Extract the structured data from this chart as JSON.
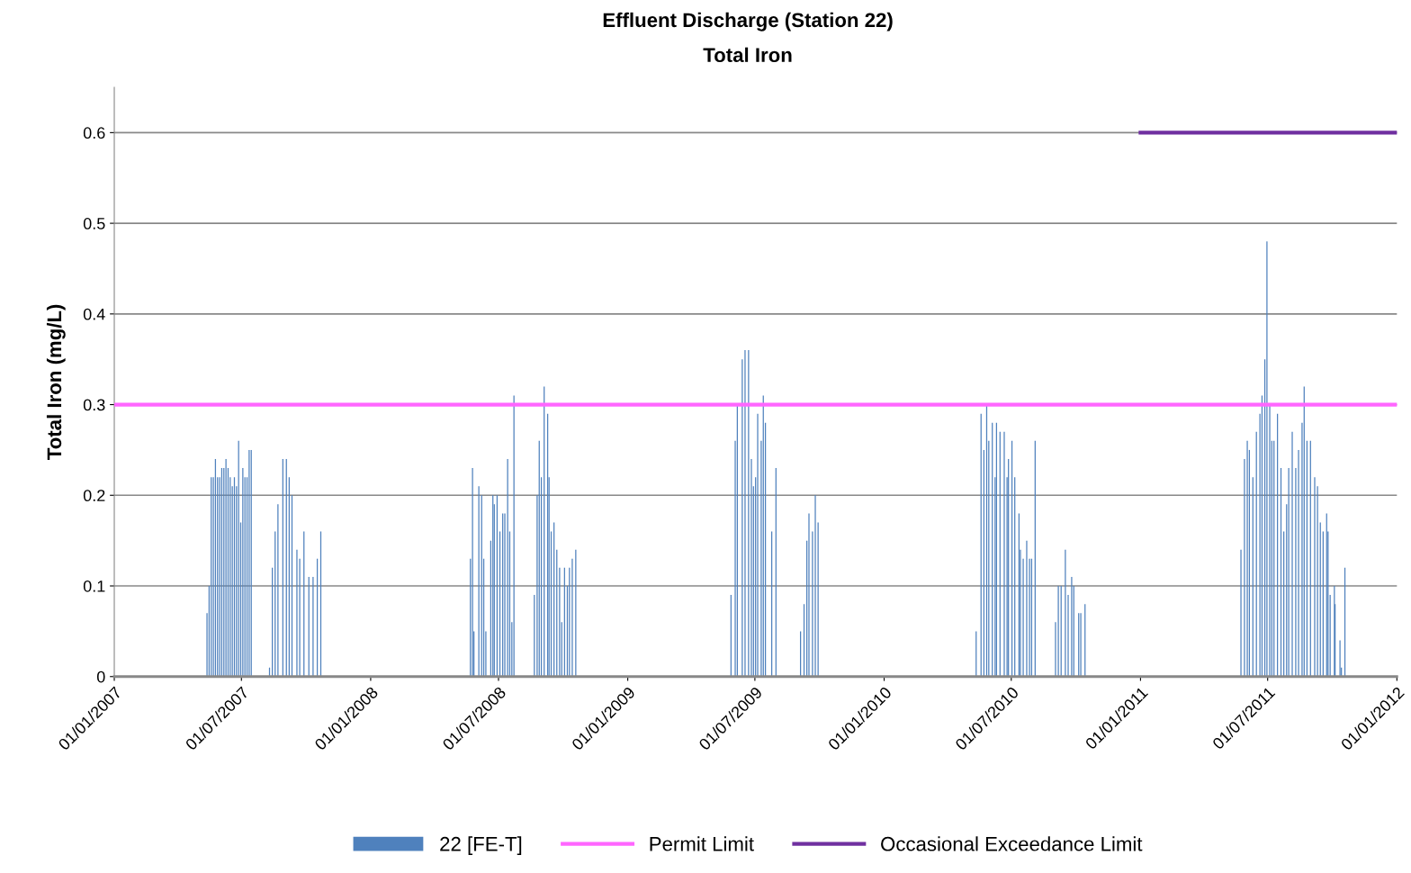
{
  "chart_data": {
    "type": "bar",
    "title": "Effluent Discharge (Station 22)",
    "subtitle": "Total Iron",
    "ylabel": "Total Iron (mg/L)",
    "xlim": [
      "2007-01-01",
      "2012-01-01"
    ],
    "xticks": [
      {
        "value": "2007-01-01",
        "label": "01/01/2007"
      },
      {
        "value": "2007-07-01",
        "label": "01/07/2007"
      },
      {
        "value": "2008-01-01",
        "label": "01/01/2008"
      },
      {
        "value": "2008-07-01",
        "label": "01/07/2008"
      },
      {
        "value": "2009-01-01",
        "label": "01/01/2009"
      },
      {
        "value": "2009-07-01",
        "label": "01/07/2009"
      },
      {
        "value": "2010-01-01",
        "label": "01/01/2010"
      },
      {
        "value": "2010-07-01",
        "label": "01/07/2010"
      },
      {
        "value": "2011-01-01",
        "label": "01/01/2011"
      },
      {
        "value": "2011-07-01",
        "label": "01/07/2011"
      },
      {
        "value": "2012-01-01",
        "label": "01/01/2012"
      }
    ],
    "ylim": [
      0,
      0.65
    ],
    "yticks": [
      0,
      0.1,
      0.2,
      0.3,
      0.4,
      0.5,
      0.6
    ],
    "grid": "y",
    "legend": "bottom",
    "series": [
      {
        "name": "22 [FE-T]",
        "color": "#4f81bd",
        "x": [
          "2007-05-13",
          "2007-05-16",
          "2007-05-19",
          "2007-05-22",
          "2007-05-25",
          "2007-05-28",
          "2007-05-31",
          "2007-06-03",
          "2007-06-06",
          "2007-06-09",
          "2007-06-12",
          "2007-06-15",
          "2007-06-18",
          "2007-06-21",
          "2007-06-24",
          "2007-06-27",
          "2007-06-30",
          "2007-07-03",
          "2007-07-06",
          "2007-07-09",
          "2007-07-12",
          "2007-07-15",
          "2007-08-10",
          "2007-08-14",
          "2007-08-18",
          "2007-08-22",
          "2007-08-29",
          "2007-09-03",
          "2007-09-07",
          "2007-09-11",
          "2007-09-18",
          "2007-09-22",
          "2007-09-28",
          "2007-10-05",
          "2007-10-11",
          "2007-10-17",
          "2007-10-22",
          "2008-05-22",
          "2008-05-25",
          "2008-05-27",
          "2008-06-03",
          "2008-06-07",
          "2008-06-10",
          "2008-06-13",
          "2008-06-20",
          "2008-06-23",
          "2008-06-25",
          "2008-06-29",
          "2008-07-03",
          "2008-07-07",
          "2008-07-10",
          "2008-07-14",
          "2008-07-17",
          "2008-07-20",
          "2008-07-23",
          "2008-08-21",
          "2008-08-25",
          "2008-08-28",
          "2008-08-31",
          "2008-09-04",
          "2008-09-09",
          "2008-09-11",
          "2008-09-14",
          "2008-09-18",
          "2008-09-22",
          "2008-09-26",
          "2008-09-29",
          "2008-10-03",
          "2008-10-07",
          "2008-10-10",
          "2008-10-14",
          "2008-10-19",
          "2009-05-28",
          "2009-06-03",
          "2009-06-06",
          "2009-06-13",
          "2009-06-17",
          "2009-06-22",
          "2009-06-26",
          "2009-06-29",
          "2009-07-02",
          "2009-07-05",
          "2009-07-10",
          "2009-07-13",
          "2009-07-16",
          "2009-07-25",
          "2009-07-31",
          "2009-09-04",
          "2009-09-09",
          "2009-09-13",
          "2009-09-16",
          "2009-09-21",
          "2009-09-25",
          "2009-09-29",
          "2010-05-12",
          "2010-05-19",
          "2010-05-23",
          "2010-05-27",
          "2010-05-30",
          "2010-06-04",
          "2010-06-08",
          "2010-06-10",
          "2010-06-15",
          "2010-06-21",
          "2010-06-25",
          "2010-06-27",
          "2010-07-02",
          "2010-07-06",
          "2010-07-12",
          "2010-07-14",
          "2010-07-18",
          "2010-07-23",
          "2010-07-27",
          "2010-07-30",
          "2010-08-04",
          "2010-09-02",
          "2010-09-06",
          "2010-09-10",
          "2010-09-16",
          "2010-09-20",
          "2010-09-25",
          "2010-09-28",
          "2010-10-05",
          "2010-10-08",
          "2010-10-14",
          "2011-05-24",
          "2011-05-29",
          "2011-06-02",
          "2011-06-05",
          "2011-06-10",
          "2011-06-15",
          "2011-06-20",
          "2011-06-23",
          "2011-06-27",
          "2011-06-30",
          "2011-07-04",
          "2011-07-07",
          "2011-07-10",
          "2011-07-15",
          "2011-07-20",
          "2011-07-24",
          "2011-07-28",
          "2011-07-31",
          "2011-08-05",
          "2011-08-10",
          "2011-08-14",
          "2011-08-19",
          "2011-08-22",
          "2011-08-26",
          "2011-08-31",
          "2011-09-06",
          "2011-09-10",
          "2011-09-14",
          "2011-09-18",
          "2011-09-23",
          "2011-09-25",
          "2011-09-28",
          "2011-10-04",
          "2011-10-05",
          "2011-10-12",
          "2011-10-14",
          "2011-10-19"
        ],
        "values": [
          0.07,
          0.1,
          0.22,
          0.22,
          0.24,
          0.22,
          0.22,
          0.23,
          0.23,
          0.24,
          0.23,
          0.22,
          0.21,
          0.22,
          0.21,
          0.26,
          0.17,
          0.23,
          0.22,
          0.22,
          0.25,
          0.25,
          0.01,
          0.12,
          0.16,
          0.19,
          0.24,
          0.24,
          0.22,
          0.2,
          0.14,
          0.13,
          0.16,
          0.11,
          0.11,
          0.13,
          0.16,
          0.13,
          0.23,
          0.05,
          0.21,
          0.2,
          0.13,
          0.05,
          0.15,
          0.2,
          0.19,
          0.2,
          0.16,
          0.18,
          0.18,
          0.24,
          0.16,
          0.06,
          0.31,
          0.09,
          0.2,
          0.26,
          0.22,
          0.32,
          0.29,
          0.22,
          0.16,
          0.17,
          0.14,
          0.12,
          0.06,
          0.12,
          0.1,
          0.12,
          0.13,
          0.14,
          0.09,
          0.26,
          0.3,
          0.35,
          0.36,
          0.36,
          0.24,
          0.21,
          0.22,
          0.29,
          0.26,
          0.31,
          0.28,
          0.16,
          0.23,
          0.05,
          0.08,
          0.15,
          0.18,
          0.16,
          0.2,
          0.17,
          0.05,
          0.29,
          0.25,
          0.3,
          0.26,
          0.28,
          0.22,
          0.28,
          0.27,
          0.27,
          0.22,
          0.24,
          0.26,
          0.22,
          0.18,
          0.14,
          0.13,
          0.15,
          0.13,
          0.13,
          0.26,
          0.06,
          0.1,
          0.1,
          0.14,
          0.09,
          0.11,
          0.1,
          0.07,
          0.07,
          0.08,
          0.14,
          0.24,
          0.26,
          0.25,
          0.22,
          0.27,
          0.29,
          0.31,
          0.35,
          0.48,
          0.3,
          0.26,
          0.26,
          0.29,
          0.23,
          0.16,
          0.19,
          0.23,
          0.27,
          0.23,
          0.25,
          0.28,
          0.32,
          0.26,
          0.26,
          0.22,
          0.21,
          0.17,
          0.16,
          0.18,
          0.16,
          0.09,
          0.1,
          0.08,
          0.04,
          0.01,
          0.12
        ]
      },
      {
        "name": "Permit Limit",
        "type": "line",
        "color": "#ff66ff",
        "x": [
          "2007-01-01",
          "2012-01-01"
        ],
        "values": [
          0.3,
          0.3
        ]
      },
      {
        "name": "Occasional Exceedance Limit",
        "type": "line",
        "color": "#7030a0",
        "x": [
          "2011-01-01",
          "2012-01-01"
        ],
        "values": [
          0.6,
          0.6
        ]
      }
    ]
  }
}
